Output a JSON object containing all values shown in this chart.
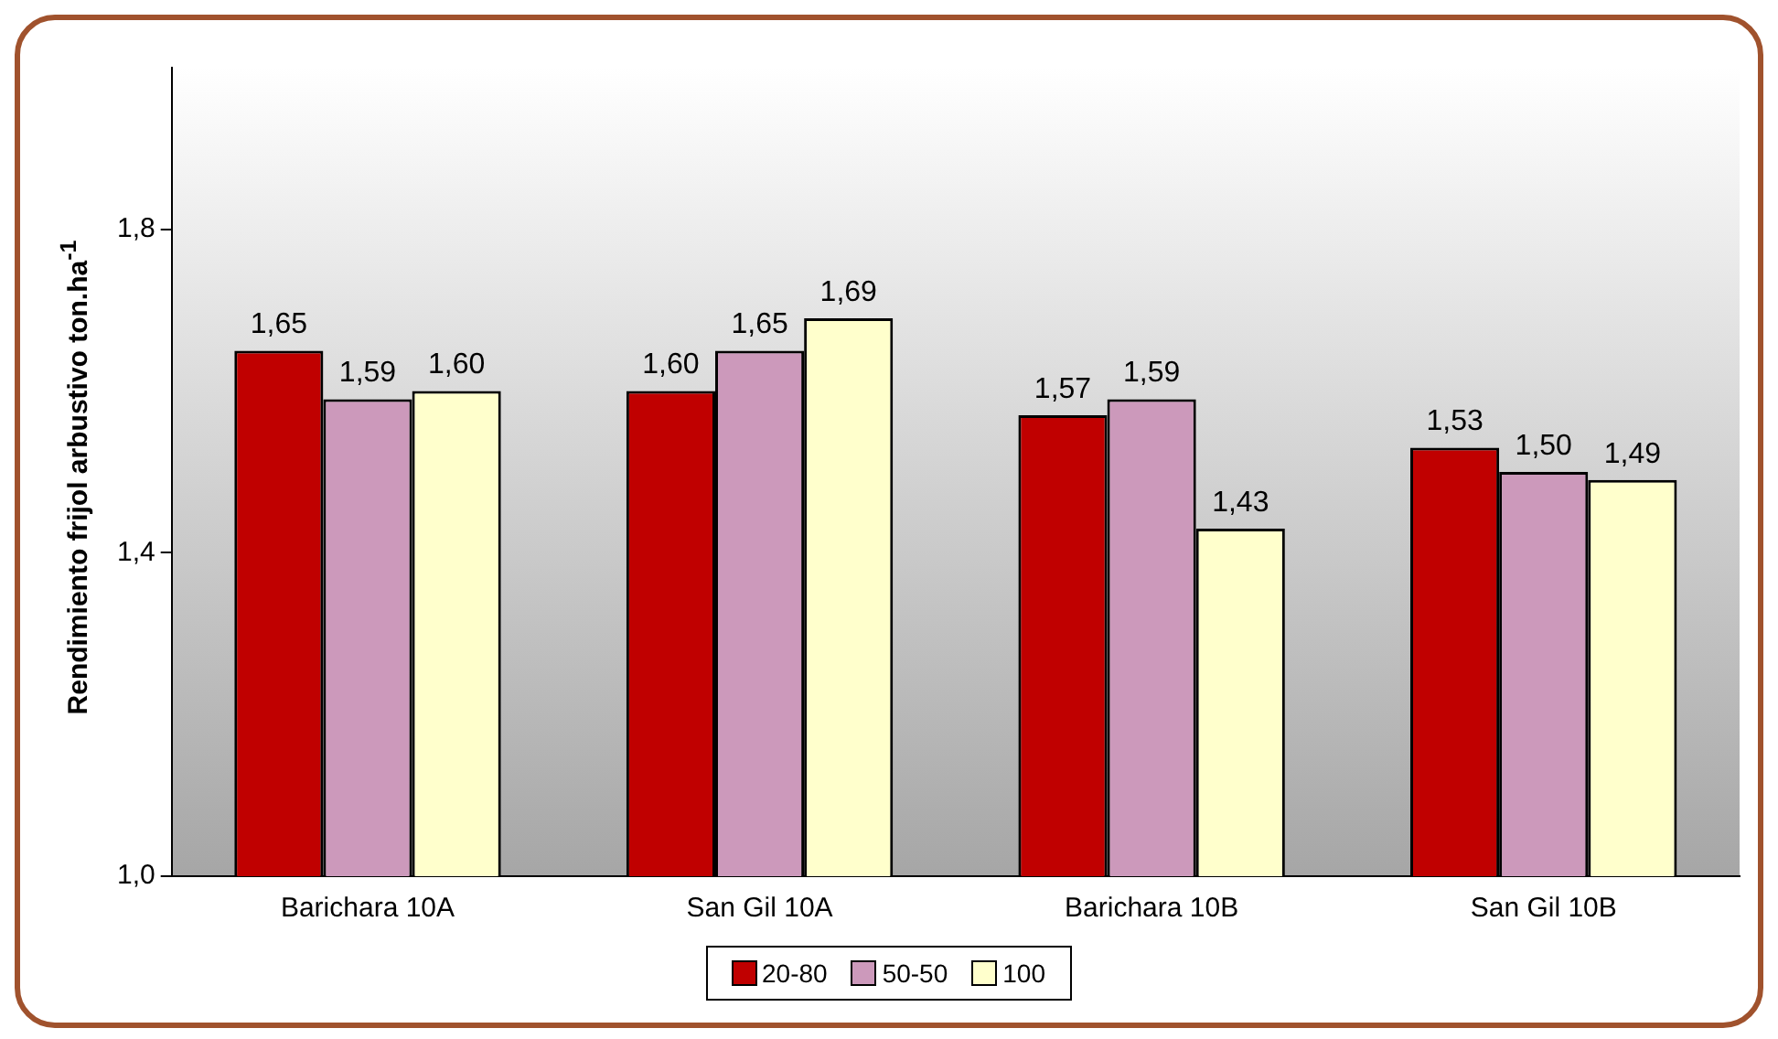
{
  "chart_data": {
    "type": "bar",
    "ylabel": "Rendimiento  frijol arbustivo ton.ha$^{-1}$",
    "categories": [
      "Barichara 10A",
      "San Gil 10A",
      "Barichara 10B",
      "San Gil 10B"
    ],
    "series": [
      {
        "name": "20-80",
        "color": "#c00000",
        "values": [
          1.65,
          1.6,
          1.57,
          1.53
        ],
        "value_labels": [
          "1,65",
          "1,60",
          "1,57",
          "1,53"
        ]
      },
      {
        "name": "50-50",
        "color": "#cc99bb",
        "values": [
          1.59,
          1.65,
          1.59,
          1.5
        ],
        "value_labels": [
          "1,59",
          "1,65",
          "1,59",
          "1,50"
        ]
      },
      {
        "name": "100",
        "color": "#ffffcc",
        "values": [
          1.6,
          1.69,
          1.43,
          1.49
        ],
        "value_labels": [
          "1,60",
          "1,69",
          "1,43",
          "1,49"
        ]
      }
    ],
    "ylim": [
      1.0,
      2.0
    ],
    "yticks": [
      {
        "value": 1.0,
        "label": "1,0"
      },
      {
        "value": 1.4,
        "label": "1,4"
      },
      {
        "value": 1.8,
        "label": "1,8"
      }
    ],
    "grid": false,
    "legend": "bottom"
  }
}
